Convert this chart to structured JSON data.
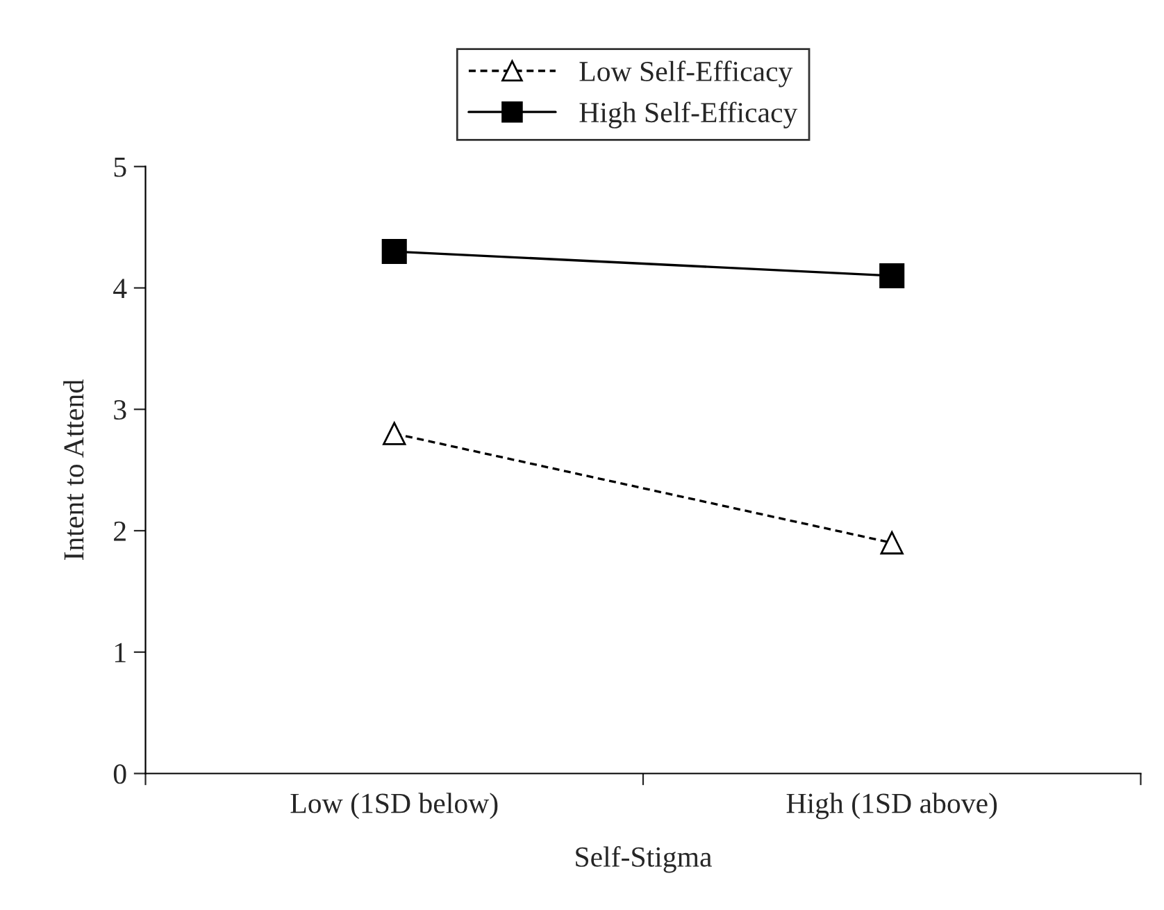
{
  "chart_data": {
    "type": "line",
    "xlabel": "Self-Stigma",
    "ylabel": "Intent to Attend",
    "categories": [
      "Low (1SD below)",
      "High (1SD above)"
    ],
    "series": [
      {
        "name": "Low Self-Efficacy",
        "color": "#000000",
        "values": [
          2.8,
          1.9
        ],
        "marker": "triangle",
        "line_style": "dashed"
      },
      {
        "name": "High Self-Efficacy",
        "color": "#000000",
        "values": [
          4.3,
          4.1
        ],
        "marker": "square",
        "line_style": "solid"
      }
    ],
    "ylim": [
      0,
      5
    ],
    "yticks": [
      0,
      1,
      2,
      3,
      4,
      5
    ],
    "grid": false,
    "legend": "top"
  }
}
